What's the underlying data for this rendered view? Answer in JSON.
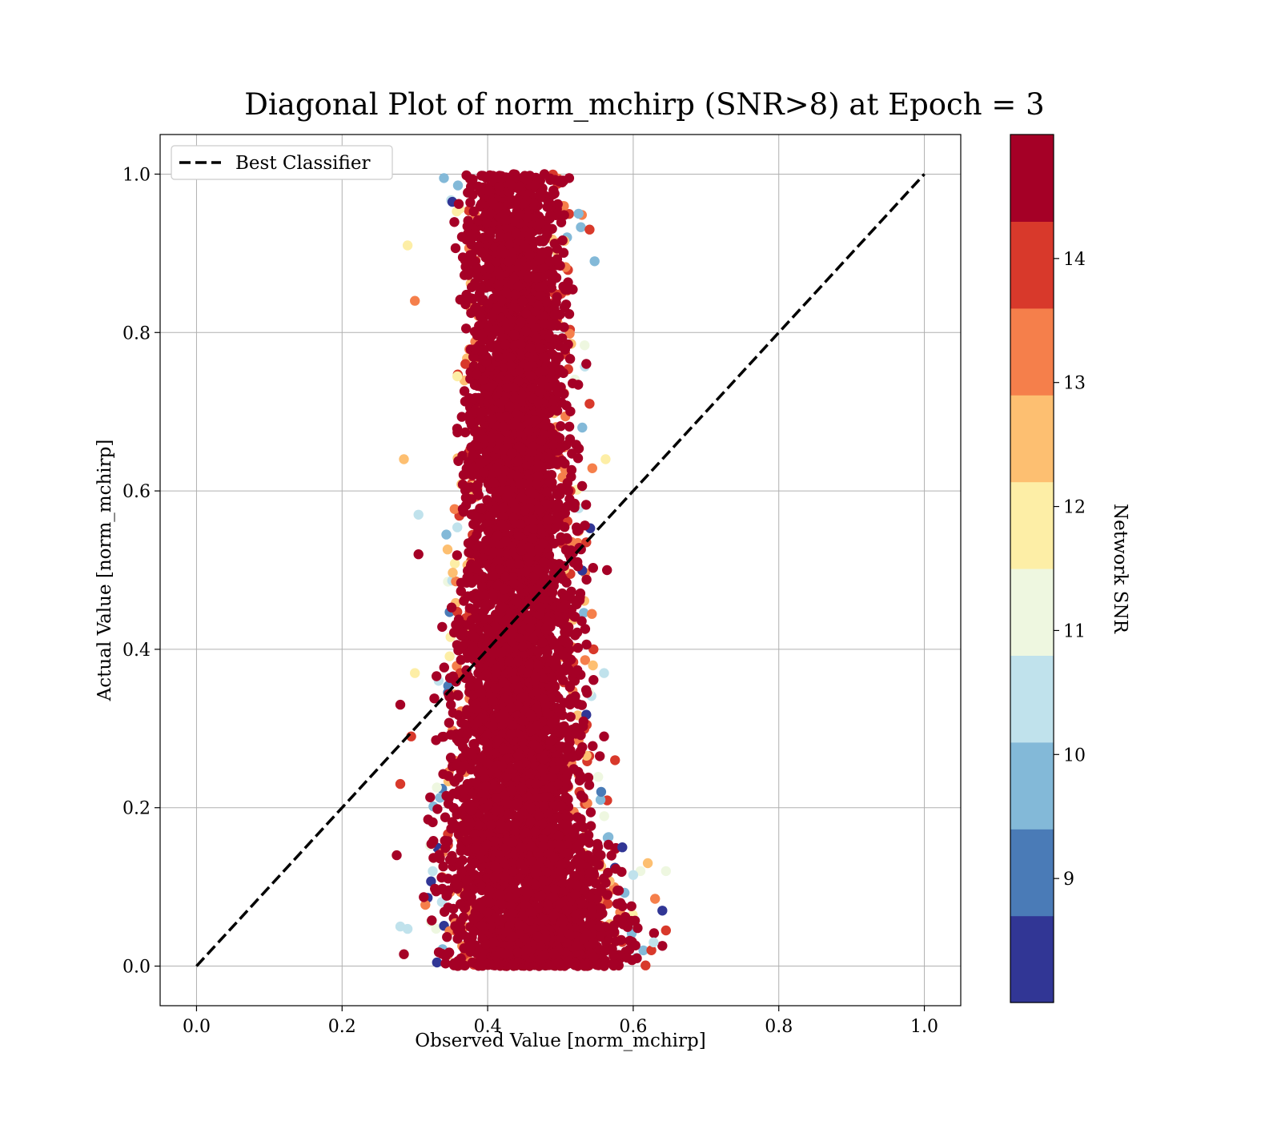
{
  "chart_data": {
    "type": "scatter",
    "title": "Diagonal Plot of norm_mchirp (SNR>8) at Epoch = 3",
    "xlabel": "Observed Value [norm_mchirp]",
    "ylabel": "Actual Value [norm_mchirp]",
    "xlim": [
      -0.05,
      1.05
    ],
    "ylim": [
      -0.05,
      1.05
    ],
    "xticks": [
      "0.0",
      "0.2",
      "0.4",
      "0.6",
      "0.8",
      "1.0"
    ],
    "yticks": [
      "0.0",
      "0.2",
      "0.4",
      "0.6",
      "0.8",
      "1.0"
    ],
    "grid": true,
    "legend": {
      "placement": "top-left",
      "entries": [
        "Best Classifier"
      ]
    },
    "reference_line": {
      "name": "Best Classifier",
      "style": "dashed",
      "color": "#000000",
      "x": [
        0.0,
        1.0
      ],
      "y": [
        0.0,
        1.0
      ]
    },
    "colorbar": {
      "label": "Network SNR",
      "range": [
        8,
        15
      ],
      "ticks": [
        "9",
        "10",
        "11",
        "12",
        "13",
        "14"
      ],
      "bins": [
        {
          "from": 8.0,
          "to": 8.7,
          "color": "#313695"
        },
        {
          "from": 8.7,
          "to": 9.4,
          "color": "#4a7bb7"
        },
        {
          "from": 9.4,
          "to": 10.1,
          "color": "#83b9d8"
        },
        {
          "from": 10.1,
          "to": 10.8,
          "color": "#c0e2ec"
        },
        {
          "from": 10.8,
          "to": 11.5,
          "color": "#eef7e0"
        },
        {
          "from": 11.5,
          "to": 12.2,
          "color": "#fdeea6"
        },
        {
          "from": 12.2,
          "to": 12.9,
          "color": "#fdbf71"
        },
        {
          "from": 12.9,
          "to": 13.6,
          "color": "#f57f4b"
        },
        {
          "from": 13.6,
          "to": 14.3,
          "color": "#d8392b"
        },
        {
          "from": 14.3,
          "to": 15.0,
          "color": "#a50026"
        }
      ]
    },
    "scatter_envelope": [
      {
        "y": 1.0,
        "x_min": 0.33,
        "x_max": 0.52
      },
      {
        "y": 0.9,
        "x_min": 0.33,
        "x_max": 0.525
      },
      {
        "y": 0.8,
        "x_min": 0.335,
        "x_max": 0.53
      },
      {
        "y": 0.7,
        "x_min": 0.33,
        "x_max": 0.53
      },
      {
        "y": 0.6,
        "x_min": 0.325,
        "x_max": 0.54
      },
      {
        "y": 0.5,
        "x_min": 0.32,
        "x_max": 0.55
      },
      {
        "y": 0.4,
        "x_min": 0.31,
        "x_max": 0.55
      },
      {
        "y": 0.3,
        "x_min": 0.3,
        "x_max": 0.56
      },
      {
        "y": 0.2,
        "x_min": 0.29,
        "x_max": 0.57
      },
      {
        "y": 0.1,
        "x_min": 0.28,
        "x_max": 0.62
      },
      {
        "y": 0.0,
        "x_min": 0.29,
        "x_max": 0.64
      }
    ],
    "scatter_dominant_snr": 14.8,
    "scatter_outliers": [
      {
        "x": 0.285,
        "y": 0.64,
        "snr": 12.6
      },
      {
        "x": 0.28,
        "y": 0.33,
        "snr": 14.8
      },
      {
        "x": 0.564,
        "y": 0.5,
        "snr": 14.8
      },
      {
        "x": 0.562,
        "y": 0.64,
        "snr": 11.8
      },
      {
        "x": 0.575,
        "y": 0.26,
        "snr": 14.2
      },
      {
        "x": 0.61,
        "y": 0.12,
        "snr": 11.3
      },
      {
        "x": 0.645,
        "y": 0.12,
        "snr": 10.9
      },
      {
        "x": 0.64,
        "y": 0.07,
        "snr": 8.3
      },
      {
        "x": 0.645,
        "y": 0.045,
        "snr": 14.0
      },
      {
        "x": 0.625,
        "y": 0.02,
        "snr": 14.2
      },
      {
        "x": 0.62,
        "y": 0.13,
        "snr": 12.4
      },
      {
        "x": 0.3,
        "y": 0.84,
        "snr": 13.4
      },
      {
        "x": 0.29,
        "y": 0.91,
        "snr": 11.8
      },
      {
        "x": 0.305,
        "y": 0.57,
        "snr": 10.5
      },
      {
        "x": 0.28,
        "y": 0.23,
        "snr": 13.8
      },
      {
        "x": 0.275,
        "y": 0.14,
        "snr": 14.8
      },
      {
        "x": 0.28,
        "y": 0.05,
        "snr": 10.3
      },
      {
        "x": 0.29,
        "y": 0.047,
        "snr": 10.5
      },
      {
        "x": 0.547,
        "y": 0.89,
        "snr": 9.8
      },
      {
        "x": 0.54,
        "y": 0.93,
        "snr": 14.2
      },
      {
        "x": 0.56,
        "y": 0.37,
        "snr": 10.1
      },
      {
        "x": 0.556,
        "y": 0.22,
        "snr": 9.2
      },
      {
        "x": 0.585,
        "y": 0.15,
        "snr": 8.4
      },
      {
        "x": 0.6,
        "y": 0.115,
        "snr": 10.2
      },
      {
        "x": 0.63,
        "y": 0.085,
        "snr": 13.2
      },
      {
        "x": 0.628,
        "y": 0.03,
        "snr": 10.6
      },
      {
        "x": 0.605,
        "y": 0.01,
        "snr": 14.8
      },
      {
        "x": 0.285,
        "y": 0.015,
        "snr": 14.8
      },
      {
        "x": 0.54,
        "y": 0.71,
        "snr": 14.0
      },
      {
        "x": 0.53,
        "y": 0.68,
        "snr": 9.8
      },
      {
        "x": 0.305,
        "y": 0.52,
        "snr": 14.8
      },
      {
        "x": 0.3,
        "y": 0.37,
        "snr": 11.8
      },
      {
        "x": 0.295,
        "y": 0.29,
        "snr": 14.0
      },
      {
        "x": 0.56,
        "y": 0.29,
        "snr": 14.8
      },
      {
        "x": 0.34,
        "y": 0.995,
        "snr": 9.8
      },
      {
        "x": 0.512,
        "y": 0.995,
        "snr": 14.8
      },
      {
        "x": 0.525,
        "y": 0.95,
        "snr": 9.5
      }
    ]
  }
}
